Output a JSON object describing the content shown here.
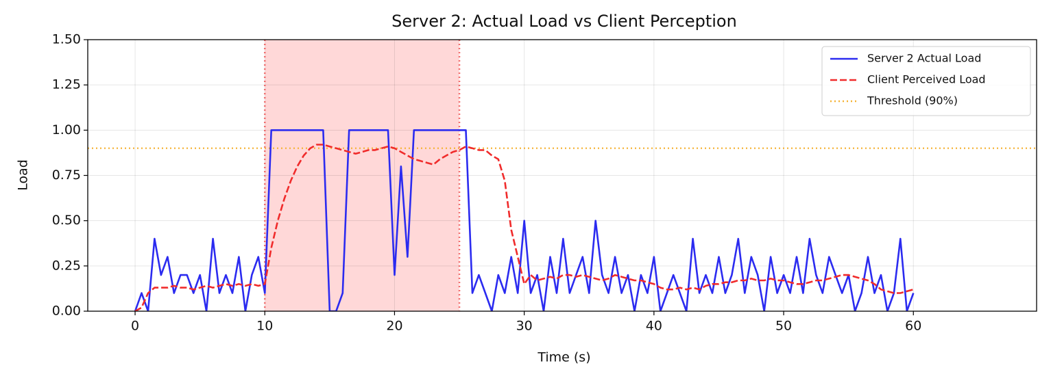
{
  "chart_data": {
    "type": "line",
    "title": "Server 2: Actual Load vs Client Perception",
    "xlabel": "Time (s)",
    "ylabel": "Load",
    "x": [
      0,
      0.5,
      1,
      1.5,
      2,
      2.5,
      3,
      3.5,
      4,
      4.5,
      5,
      5.5,
      6,
      6.5,
      7,
      7.5,
      8,
      8.5,
      9,
      9.5,
      10,
      10.5,
      11,
      11.5,
      12,
      12.5,
      13,
      13.5,
      14,
      14.5,
      15,
      15.5,
      16,
      16.5,
      17,
      17.5,
      18,
      18.5,
      19,
      19.5,
      20,
      20.5,
      21,
      21.5,
      22,
      22.5,
      23,
      23.5,
      24,
      24.5,
      25,
      25.5,
      26,
      26.5,
      27,
      27.5,
      28,
      28.5,
      29,
      29.5,
      30,
      30.5,
      31,
      31.5,
      32,
      32.5,
      33,
      33.5,
      34,
      34.5,
      35,
      35.5,
      36,
      36.5,
      37,
      37.5,
      38,
      38.5,
      39,
      39.5,
      40,
      40.5,
      41,
      41.5,
      42,
      42.5,
      43,
      43.5,
      44,
      44.5,
      45,
      45.5,
      46,
      46.5,
      47,
      47.5,
      48,
      48.5,
      49,
      49.5,
      50,
      50.5,
      51,
      51.5,
      52,
      52.5,
      53,
      53.5,
      54,
      54.5,
      55,
      55.5,
      56,
      56.5,
      57,
      57.5,
      58,
      58.5,
      59,
      59.5,
      60
    ],
    "series": [
      {
        "name": "Server 2 Actual Load",
        "color": "#2b2bf0",
        "dash": "solid",
        "values": [
          0,
          0.1,
          0,
          0.4,
          0.2,
          0.3,
          0.1,
          0.2,
          0.2,
          0.1,
          0.2,
          0,
          0.4,
          0.1,
          0.2,
          0.1,
          0.3,
          0,
          0.2,
          0.3,
          0.1,
          1,
          1,
          1,
          1,
          1,
          1,
          1,
          1,
          1,
          0,
          0,
          0.1,
          1,
          1,
          1,
          1,
          1,
          1,
          1,
          0.2,
          0.8,
          0.3,
          1,
          1,
          1,
          1,
          1,
          1,
          1,
          1,
          1,
          0.1,
          0.2,
          0.1,
          0,
          0.2,
          0.1,
          0.3,
          0.1,
          0.5,
          0.1,
          0.2,
          0,
          0.3,
          0.1,
          0.4,
          0.1,
          0.2,
          0.3,
          0.1,
          0.5,
          0.2,
          0.1,
          0.3,
          0.1,
          0.2,
          0,
          0.2,
          0.1,
          0.3,
          0,
          0.1,
          0.2,
          0.1,
          0,
          0.4,
          0.1,
          0.2,
          0.1,
          0.3,
          0.1,
          0.2,
          0.4,
          0.1,
          0.3,
          0.2,
          0,
          0.3,
          0.1,
          0.2,
          0.1,
          0.3,
          0.1,
          0.4,
          0.2,
          0.1,
          0.3,
          0.2,
          0.1,
          0.2,
          0,
          0.1,
          0.3,
          0.1,
          0.2,
          0,
          0.1,
          0.4,
          0,
          0.1
        ]
      },
      {
        "name": "Client Perceived Load",
        "color": "#f02b2b",
        "dash": "dashed",
        "values": [
          0,
          0.02,
          0.1,
          0.13,
          0.13,
          0.13,
          0.14,
          0.13,
          0.13,
          0.12,
          0.13,
          0.14,
          0.13,
          0.14,
          0.15,
          0.14,
          0.15,
          0.14,
          0.15,
          0.14,
          0.15,
          0.35,
          0.5,
          0.62,
          0.72,
          0.8,
          0.86,
          0.9,
          0.92,
          0.92,
          0.91,
          0.9,
          0.89,
          0.88,
          0.87,
          0.88,
          0.89,
          0.89,
          0.9,
          0.91,
          0.9,
          0.88,
          0.86,
          0.84,
          0.83,
          0.82,
          0.81,
          0.84,
          0.86,
          0.88,
          0.89,
          0.91,
          0.9,
          0.89,
          0.89,
          0.86,
          0.84,
          0.72,
          0.45,
          0.3,
          0.15,
          0.2,
          0.17,
          0.18,
          0.19,
          0.18,
          0.2,
          0.2,
          0.19,
          0.2,
          0.19,
          0.18,
          0.17,
          0.18,
          0.2,
          0.19,
          0.18,
          0.17,
          0.17,
          0.16,
          0.15,
          0.13,
          0.12,
          0.12,
          0.13,
          0.12,
          0.13,
          0.12,
          0.14,
          0.15,
          0.15,
          0.16,
          0.16,
          0.17,
          0.17,
          0.18,
          0.17,
          0.17,
          0.18,
          0.17,
          0.17,
          0.16,
          0.15,
          0.15,
          0.16,
          0.17,
          0.17,
          0.18,
          0.19,
          0.2,
          0.2,
          0.19,
          0.18,
          0.17,
          0.15,
          0.12,
          0.11,
          0.1,
          0.1,
          0.11,
          0.12
        ]
      }
    ],
    "threshold": {
      "name": "Threshold (90%)",
      "value": 0.9,
      "color": "#f5b335"
    },
    "shaded_region": [
      10,
      25
    ],
    "shade_color": "#ffd8d8",
    "region_line_color": "#f06060",
    "xlim": [
      -3.65,
      69.5
    ],
    "ylim": [
      0,
      1.5
    ],
    "xticks": [
      0,
      10,
      20,
      30,
      40,
      50,
      60
    ],
    "yticks": [
      {
        "value": 0,
        "label": "0.00"
      },
      {
        "value": 0.25,
        "label": "0.25"
      },
      {
        "value": 0.5,
        "label": "0.50"
      },
      {
        "value": 0.75,
        "label": "0.75"
      },
      {
        "value": 1,
        "label": "1.00"
      },
      {
        "value": 1.25,
        "label": "1.25"
      },
      {
        "value": 1.5,
        "label": "1.50"
      }
    ],
    "grid": true,
    "legend": "upper right"
  }
}
